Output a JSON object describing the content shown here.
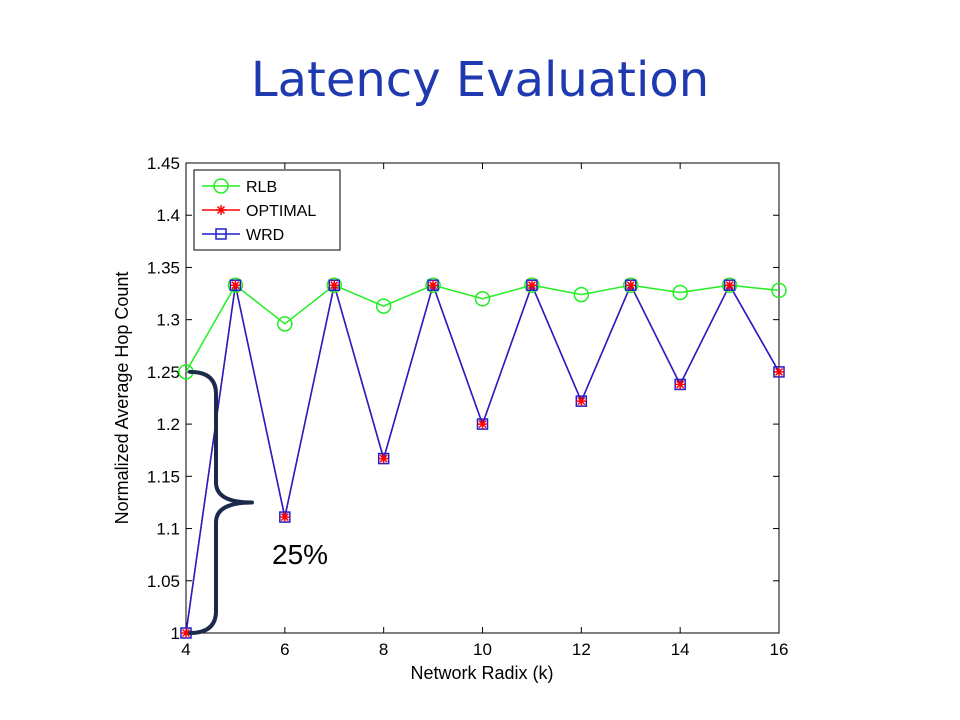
{
  "slide": {
    "title": "Latency Evaluation"
  },
  "chart_data": {
    "type": "line",
    "xlabel": "Network Radix (k)",
    "ylabel": "Normalized Average Hop Count",
    "xlim": [
      4,
      16
    ],
    "ylim": [
      1,
      1.45
    ],
    "x_ticks": [
      "4",
      "6",
      "8",
      "10",
      "12",
      "14",
      "16"
    ],
    "y_ticks": [
      "1",
      "1.05",
      "1.1",
      "1.15",
      "1.2",
      "1.25",
      "1.3",
      "1.35",
      "1.4",
      "1.45"
    ],
    "grid": false,
    "legend_position": "top-left",
    "x": [
      4,
      5,
      6,
      7,
      8,
      9,
      10,
      11,
      12,
      13,
      14,
      15,
      16
    ],
    "series": [
      {
        "name": "RLB",
        "color": "#22ee22",
        "marker": "circle",
        "values": [
          1.25,
          1.333,
          1.296,
          1.333,
          1.313,
          1.333,
          1.32,
          1.333,
          1.324,
          1.333,
          1.326,
          1.333,
          1.328
        ]
      },
      {
        "name": "OPTIMAL",
        "color": "#ff0000",
        "marker": "asterisk",
        "values": [
          1.0,
          1.333,
          1.111,
          1.333,
          1.167,
          1.333,
          1.2,
          1.333,
          1.222,
          1.333,
          1.238,
          1.333,
          1.25
        ]
      },
      {
        "name": "WRD",
        "color": "#1f1fcf",
        "marker": "square",
        "values": [
          1.0,
          1.333,
          1.111,
          1.333,
          1.167,
          1.333,
          1.2,
          1.333,
          1.222,
          1.333,
          1.238,
          1.333,
          1.25
        ]
      }
    ],
    "annotation": {
      "text": "25%",
      "brace_from_y": 1.0,
      "brace_to_y": 1.25,
      "at_x": 4
    }
  }
}
